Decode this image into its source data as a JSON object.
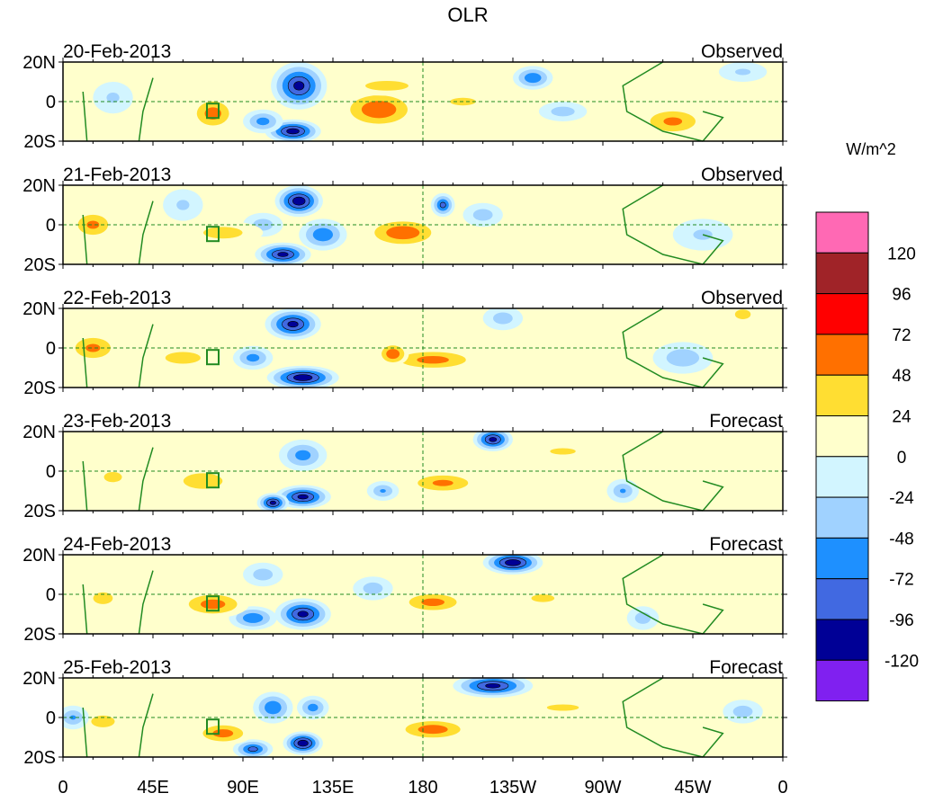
{
  "chart_data": {
    "type": "heatmap",
    "title": "OLR",
    "units_label": "W/m^2",
    "xlim": [
      0,
      360
    ],
    "ylim": [
      -20,
      20
    ],
    "x_ticks": [
      {
        "lon": 0,
        "label": "0"
      },
      {
        "lon": 45,
        "label": "45E"
      },
      {
        "lon": 90,
        "label": "90E"
      },
      {
        "lon": 135,
        "label": "135E"
      },
      {
        "lon": 180,
        "label": "180"
      },
      {
        "lon": 225,
        "label": "135W"
      },
      {
        "lon": 270,
        "label": "90W"
      },
      {
        "lon": 315,
        "label": "45W"
      },
      {
        "lon": 360,
        "label": "0"
      }
    ],
    "y_ticks": [
      {
        "lat": 20,
        "label": "20N"
      },
      {
        "lat": 0,
        "label": "0"
      },
      {
        "lat": -20,
        "label": "20S"
      }
    ],
    "colorbar": {
      "levels": [
        120,
        96,
        72,
        48,
        24,
        0,
        -24,
        -48,
        -72,
        -96,
        -120
      ],
      "colors": [
        "#FF69B4",
        "#A02328",
        "#FF0000",
        "#FF7000",
        "#FFDE32",
        "#FFFFCC",
        "#D2F5FF",
        "#A0D2FF",
        "#1E90FF",
        "#4169E1",
        "#000096",
        "#8020F0"
      ]
    },
    "panels": [
      {
        "date": "20-Feb-2013",
        "kind": "Observed",
        "features": [
          [
            75,
            -6,
            12,
            9,
            62
          ],
          [
            118,
            8,
            14,
            12,
            -100
          ],
          [
            115,
            -15,
            14,
            6,
            -105
          ],
          [
            100,
            -10,
            10,
            6,
            -60
          ],
          [
            158,
            -4,
            20,
            10,
            72
          ],
          [
            162,
            8,
            22,
            5,
            40
          ],
          [
            235,
            12,
            10,
            6,
            -70
          ],
          [
            250,
            -5,
            12,
            5,
            -40
          ],
          [
            305,
            -10,
            18,
            8,
            55
          ],
          [
            25,
            2,
            10,
            8,
            -30
          ],
          [
            200,
            0,
            20,
            6,
            30
          ],
          [
            340,
            15,
            12,
            5,
            -30
          ]
        ]
      },
      {
        "date": "21-Feb-2013",
        "kind": "Observed",
        "features": [
          [
            15,
            0,
            12,
            8,
            55
          ],
          [
            118,
            12,
            12,
            8,
            -110
          ],
          [
            110,
            -15,
            14,
            6,
            -100
          ],
          [
            130,
            -5,
            12,
            8,
            -70
          ],
          [
            170,
            -4,
            20,
            8,
            70
          ],
          [
            190,
            10,
            6,
            6,
            -80
          ],
          [
            100,
            0,
            10,
            6,
            -40
          ],
          [
            80,
            -4,
            20,
            6,
            40
          ],
          [
            210,
            5,
            10,
            6,
            -40
          ],
          [
            320,
            -5,
            15,
            8,
            -30
          ],
          [
            60,
            10,
            10,
            8,
            -30
          ]
        ]
      },
      {
        "date": "22-Feb-2013",
        "kind": "Observed",
        "features": [
          [
            15,
            0,
            14,
            8,
            55
          ],
          [
            115,
            12,
            14,
            8,
            -100
          ],
          [
            120,
            -15,
            18,
            6,
            -110
          ],
          [
            95,
            -5,
            10,
            6,
            -60
          ],
          [
            185,
            -6,
            25,
            6,
            60
          ],
          [
            165,
            -3,
            8,
            6,
            70
          ],
          [
            220,
            15,
            10,
            6,
            -40
          ],
          [
            310,
            -5,
            15,
            8,
            -45
          ],
          [
            340,
            17,
            8,
            5,
            40
          ],
          [
            60,
            -5,
            18,
            6,
            40
          ]
        ]
      },
      {
        "date": "23-Feb-2013",
        "kind": "Forecast",
        "features": [
          [
            215,
            16,
            10,
            6,
            -100
          ],
          [
            120,
            -13,
            14,
            6,
            -100
          ],
          [
            105,
            -16,
            8,
            5,
            -100
          ],
          [
            70,
            -5,
            20,
            8,
            40
          ],
          [
            190,
            -6,
            20,
            6,
            55
          ],
          [
            160,
            -10,
            8,
            5,
            -50
          ],
          [
            280,
            -10,
            8,
            6,
            -50
          ],
          [
            25,
            -3,
            14,
            8,
            30
          ],
          [
            120,
            8,
            12,
            8,
            -60
          ],
          [
            250,
            10,
            20,
            5,
            30
          ]
        ]
      },
      {
        "date": "24-Feb-2013",
        "kind": "Forecast",
        "features": [
          [
            225,
            16,
            15,
            6,
            -110
          ],
          [
            120,
            -10,
            14,
            8,
            -100
          ],
          [
            95,
            -12,
            12,
            6,
            -70
          ],
          [
            75,
            -5,
            18,
            7,
            62
          ],
          [
            185,
            -4,
            18,
            6,
            60
          ],
          [
            155,
            3,
            10,
            6,
            -40
          ],
          [
            20,
            -2,
            10,
            6,
            40
          ],
          [
            290,
            -12,
            8,
            6,
            -40
          ],
          [
            240,
            -2,
            18,
            6,
            30
          ],
          [
            100,
            10,
            10,
            6,
            -40
          ]
        ]
      },
      {
        "date": "25-Feb-2013",
        "kind": "Forecast",
        "features": [
          [
            215,
            16,
            20,
            6,
            -100
          ],
          [
            120,
            -13,
            10,
            6,
            -110
          ],
          [
            95,
            -16,
            10,
            5,
            -80
          ],
          [
            80,
            -8,
            15,
            6,
            62
          ],
          [
            185,
            -6,
            20,
            6,
            65
          ],
          [
            105,
            5,
            10,
            8,
            -70
          ],
          [
            125,
            5,
            8,
            6,
            -60
          ],
          [
            20,
            -2,
            12,
            6,
            40
          ],
          [
            5,
            0,
            8,
            6,
            -50
          ],
          [
            340,
            3,
            10,
            6,
            -40
          ],
          [
            250,
            5,
            25,
            5,
            30
          ]
        ]
      }
    ]
  }
}
